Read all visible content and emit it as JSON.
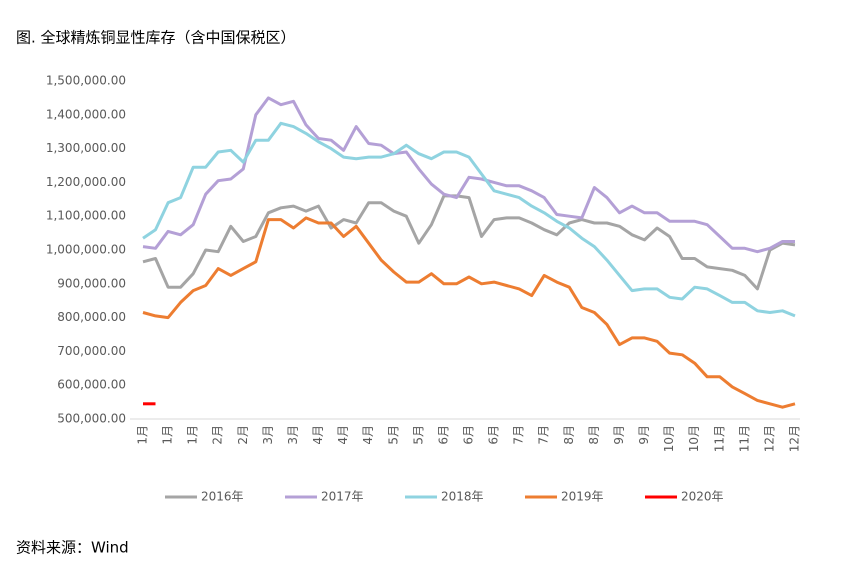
{
  "chart_data": {
    "type": "line",
    "title": "图. 全球精炼铜显性库存（含中国保税区）",
    "source": "资料来源：Wind",
    "categories": [
      "1月",
      null,
      "1月",
      null,
      "1月",
      null,
      "2月",
      null,
      "2月",
      null,
      "3月",
      null,
      "3月",
      null,
      "4月",
      null,
      "4月",
      null,
      "4月",
      null,
      "5月",
      null,
      "5月",
      null,
      "6月",
      null,
      "6月",
      null,
      "6月",
      null,
      "7月",
      null,
      "7月",
      null,
      "8月",
      null,
      "8月",
      null,
      "9月",
      null,
      "9月",
      null,
      "10月",
      null,
      "10月",
      null,
      "11月",
      null,
      "11月",
      null,
      "12月",
      null,
      "12月"
    ],
    "series": [
      {
        "name": "2016年",
        "color": "#a5a5a5",
        "values": [
          965000,
          975000,
          890000,
          890000,
          930000,
          1000000,
          995000,
          1070000,
          1025000,
          1040000,
          1110000,
          1125000,
          1130000,
          1115000,
          1130000,
          1065000,
          1090000,
          1080000,
          1140000,
          1140000,
          1115000,
          1100000,
          1020000,
          1075000,
          1160000,
          1160000,
          1155000,
          1040000,
          1090000,
          1095000,
          1095000,
          1080000,
          1060000,
          1045000,
          1080000,
          1090000,
          1080000,
          1080000,
          1070000,
          1045000,
          1030000,
          1065000,
          1040000,
          975000,
          975000,
          950000,
          945000,
          940000,
          925000,
          885000,
          1000000,
          1020000,
          1015000
        ]
      },
      {
        "name": "2017年",
        "color": "#b4a0d6",
        "values": [
          1010000,
          1005000,
          1055000,
          1045000,
          1075000,
          1165000,
          1205000,
          1210000,
          1240000,
          1400000,
          1450000,
          1430000,
          1440000,
          1370000,
          1330000,
          1325000,
          1295000,
          1365000,
          1315000,
          1310000,
          1285000,
          1290000,
          1240000,
          1195000,
          1165000,
          1155000,
          1215000,
          1210000,
          1200000,
          1190000,
          1190000,
          1175000,
          1155000,
          1105000,
          1100000,
          1095000,
          1185000,
          1155000,
          1110000,
          1130000,
          1110000,
          1110000,
          1085000,
          1085000,
          1085000,
          1075000,
          1040000,
          1005000,
          1005000,
          995000,
          1005000,
          1025000,
          1025000
        ]
      },
      {
        "name": "2018年",
        "color": "#8fd3e0",
        "values": [
          1035000,
          1060000,
          1140000,
          1155000,
          1245000,
          1245000,
          1290000,
          1295000,
          1260000,
          1325000,
          1325000,
          1375000,
          1365000,
          1345000,
          1320000,
          1300000,
          1275000,
          1270000,
          1275000,
          1275000,
          1285000,
          1310000,
          1285000,
          1270000,
          1290000,
          1290000,
          1275000,
          1225000,
          1175000,
          1165000,
          1155000,
          1130000,
          1110000,
          1085000,
          1065000,
          1035000,
          1010000,
          970000,
          925000,
          880000,
          885000,
          885000,
          860000,
          855000,
          890000,
          885000,
          865000,
          845000,
          845000,
          820000,
          815000,
          820000,
          805000
        ]
      },
      {
        "name": "2019年",
        "color": "#ed7d31",
        "values": [
          815000,
          805000,
          800000,
          845000,
          880000,
          895000,
          945000,
          925000,
          945000,
          965000,
          1090000,
          1090000,
          1065000,
          1095000,
          1080000,
          1080000,
          1040000,
          1070000,
          1020000,
          970000,
          935000,
          905000,
          905000,
          930000,
          900000,
          900000,
          920000,
          900000,
          905000,
          895000,
          885000,
          865000,
          925000,
          905000,
          890000,
          830000,
          815000,
          780000,
          720000,
          740000,
          740000,
          730000,
          695000,
          690000,
          665000,
          625000,
          625000,
          595000,
          575000,
          555000,
          545000,
          535000,
          545000
        ]
      },
      {
        "name": "2020年",
        "color": "#ff0000",
        "values": [
          545000,
          545000,
          null,
          null,
          null,
          null,
          null,
          null,
          null,
          null,
          null,
          null,
          null,
          null,
          null,
          null,
          null,
          null,
          null,
          null,
          null,
          null,
          null,
          null,
          null,
          null,
          null,
          null,
          null,
          null,
          null,
          null,
          null,
          null,
          null,
          null,
          null,
          null,
          null,
          null,
          null,
          null,
          null,
          null,
          null,
          null,
          null,
          null,
          null,
          null,
          null,
          null,
          null
        ]
      }
    ],
    "ylim": [
      500000,
      1500000
    ],
    "yticks": [
      {
        "value": 500000,
        "label": "500,000.00"
      },
      {
        "value": 600000,
        "label": "600,000.00"
      },
      {
        "value": 700000,
        "label": "700,000.00"
      },
      {
        "value": 800000,
        "label": "800,000.00"
      },
      {
        "value": 900000,
        "label": "900,000.00"
      },
      {
        "value": 1000000,
        "label": "1,000,000.00"
      },
      {
        "value": 1100000,
        "label": "1,100,000.00"
      },
      {
        "value": 1200000,
        "label": "1,200,000.00"
      },
      {
        "value": 1300000,
        "label": "1,300,000.00"
      },
      {
        "value": 1400000,
        "label": "1,400,000.00"
      },
      {
        "value": 1500000,
        "label": "1,500,000.00"
      }
    ],
    "legend": "bottom"
  }
}
